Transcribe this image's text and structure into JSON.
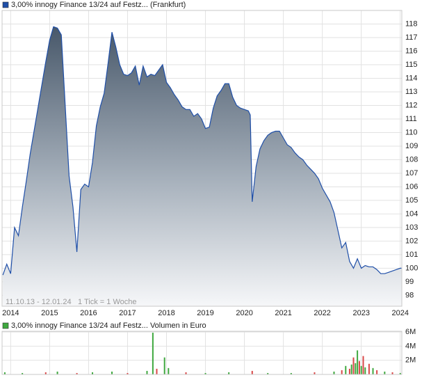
{
  "chart_data": [
    {
      "type": "area",
      "note_range": "11.10.13 - 12.01.24",
      "note_tick": "1 Tick = 1 Woche",
      "x": [
        2013.8,
        2013.9,
        2014.0,
        2014.1,
        2014.2,
        2014.3,
        2014.4,
        2014.5,
        2014.6,
        2014.7,
        2014.8,
        2014.9,
        2015.0,
        2015.1,
        2015.2,
        2015.3,
        2015.4,
        2015.5,
        2015.6,
        2015.7,
        2015.8,
        2015.9,
        2016.0,
        2016.1,
        2016.2,
        2016.3,
        2016.4,
        2016.5,
        2016.6,
        2016.7,
        2016.8,
        2016.9,
        2017.0,
        2017.1,
        2017.2,
        2017.3,
        2017.4,
        2017.5,
        2017.6,
        2017.7,
        2017.8,
        2017.9,
        2018.0,
        2018.1,
        2018.2,
        2018.3,
        2018.4,
        2018.5,
        2018.6,
        2018.7,
        2018.8,
        2018.9,
        2019.0,
        2019.1,
        2019.2,
        2019.3,
        2019.4,
        2019.5,
        2019.6,
        2019.7,
        2019.8,
        2019.9,
        2020.0,
        2020.1,
        2020.15,
        2020.2,
        2020.3,
        2020.4,
        2020.5,
        2020.6,
        2020.7,
        2020.8,
        2020.9,
        2021.0,
        2021.1,
        2021.2,
        2021.3,
        2021.4,
        2021.5,
        2021.6,
        2021.7,
        2021.8,
        2021.9,
        2022.0,
        2022.1,
        2022.2,
        2022.3,
        2022.4,
        2022.5,
        2022.6,
        2022.7,
        2022.8,
        2022.9,
        2023.0,
        2023.1,
        2023.2,
        2023.3,
        2023.4,
        2023.5,
        2023.6,
        2023.7,
        2023.8,
        2023.9,
        2024.0,
        2024.03
      ],
      "series": [
        {
          "name": "3,00% innogy Finance 13/24 auf Festz... (Frankfurt)",
          "color": "#1f4fa8",
          "values": [
            99.5,
            100.3,
            99.6,
            103,
            102.4,
            104.5,
            106.4,
            108.4,
            110.1,
            111.8,
            113.5,
            115.2,
            116.8,
            117.8,
            117.7,
            117.2,
            112,
            106.8,
            104.5,
            101.2,
            105.8,
            106.2,
            106,
            107.8,
            110.5,
            111.9,
            112.9,
            115.1,
            117.4,
            116.3,
            115,
            114.3,
            114.2,
            114.4,
            114.9,
            113.5,
            114.9,
            114.1,
            114.3,
            114.2,
            114.6,
            115,
            113.7,
            113.3,
            112.8,
            112.4,
            111.9,
            111.7,
            111.7,
            111.2,
            111.4,
            111,
            110.3,
            110.4,
            111.8,
            112.7,
            113.1,
            113.6,
            113.6,
            112.6,
            112,
            111.8,
            111.7,
            111.6,
            111.3,
            104.9,
            107.5,
            108.8,
            109.4,
            109.8,
            110,
            110.1,
            110.1,
            109.6,
            109.1,
            108.9,
            108.5,
            108.2,
            108,
            107.6,
            107.3,
            107,
            106.6,
            105.9,
            105.4,
            104.9,
            104.1,
            102.8,
            101.5,
            101.9,
            100.5,
            100,
            100.7,
            100,
            100.2,
            100.1,
            100.1,
            99.9,
            99.6,
            99.6,
            99.7,
            99.8,
            99.9,
            100,
            100
          ]
        }
      ],
      "xlim": [
        2013.78,
        2024.04
      ],
      "xticks": [
        2014,
        2015,
        2016,
        2017,
        2018,
        2019,
        2020,
        2021,
        2022,
        2023,
        2024
      ],
      "ylim": [
        97.2,
        119
      ],
      "yticks": [
        98,
        99,
        100,
        101,
        102,
        103,
        104,
        105,
        106,
        107,
        108,
        109,
        110,
        111,
        112,
        113,
        114,
        115,
        116,
        117,
        118
      ],
      "grid": true
    },
    {
      "type": "bar",
      "x": [
        2013.85,
        2014.3,
        2014.9,
        2015.2,
        2015.7,
        2016.1,
        2016.6,
        2017.0,
        2017.5,
        2017.65,
        2017.75,
        2017.95,
        2018.05,
        2018.5,
        2019.0,
        2019.6,
        2020.2,
        2020.6,
        2021.2,
        2021.8,
        2022.3,
        2022.5,
        2022.6,
        2022.7,
        2022.75,
        2022.8,
        2022.85,
        2022.9,
        2022.95,
        2023.0,
        2023.05,
        2023.1,
        2023.2,
        2023.3,
        2023.4,
        2023.6,
        2023.8,
        2024.0
      ],
      "series": [
        {
          "name": "3,00% innogy Finance 13/24 auf Festz... Volumen in Euro",
          "color": "#3fa83f",
          "values": [
            300000,
            200000,
            300000,
            400000,
            200000,
            300000,
            400000,
            200000,
            500000,
            5900000,
            800000,
            2400000,
            900000,
            300000,
            200000,
            300000,
            500000,
            200000,
            200000,
            300000,
            400000,
            600000,
            1200000,
            800000,
            1400000,
            2400000,
            1600000,
            3400000,
            1900000,
            1200000,
            2600000,
            1000000,
            1500000,
            900000,
            600000,
            400000,
            300000,
            200000
          ],
          "colors": [
            "#3fa83f",
            "#3fa83f",
            "#d94848",
            "#3fa83f",
            "#d94848",
            "#3fa83f",
            "#3fa83f",
            "#d94848",
            "#3fa83f",
            "#3fa83f",
            "#d94848",
            "#3fa83f",
            "#3fa83f",
            "#d94848",
            "#3fa83f",
            "#3fa83f",
            "#d94848",
            "#3fa83f",
            "#3fa83f",
            "#d94848",
            "#3fa83f",
            "#d94848",
            "#3fa83f",
            "#d94848",
            "#3fa83f",
            "#d94848",
            "#3fa83f",
            "#3fa83f",
            "#d94848",
            "#3fa83f",
            "#d94848",
            "#3fa83f",
            "#d94848",
            "#3fa83f",
            "#d94848",
            "#3fa83f",
            "#d94848",
            "#3fa83f"
          ]
        }
      ],
      "xlim": [
        2013.78,
        2024.04
      ],
      "xticks": [
        2014,
        2015,
        2016,
        2017,
        2018,
        2019,
        2020,
        2021,
        2022,
        2023,
        2024
      ],
      "ylim": [
        0,
        6100000
      ],
      "yticks": [
        {
          "value": 2000000,
          "label": "2M"
        },
        {
          "value": 4000000,
          "label": "4M"
        },
        {
          "value": 6000000,
          "label": "6M"
        }
      ],
      "grid": true
    }
  ]
}
